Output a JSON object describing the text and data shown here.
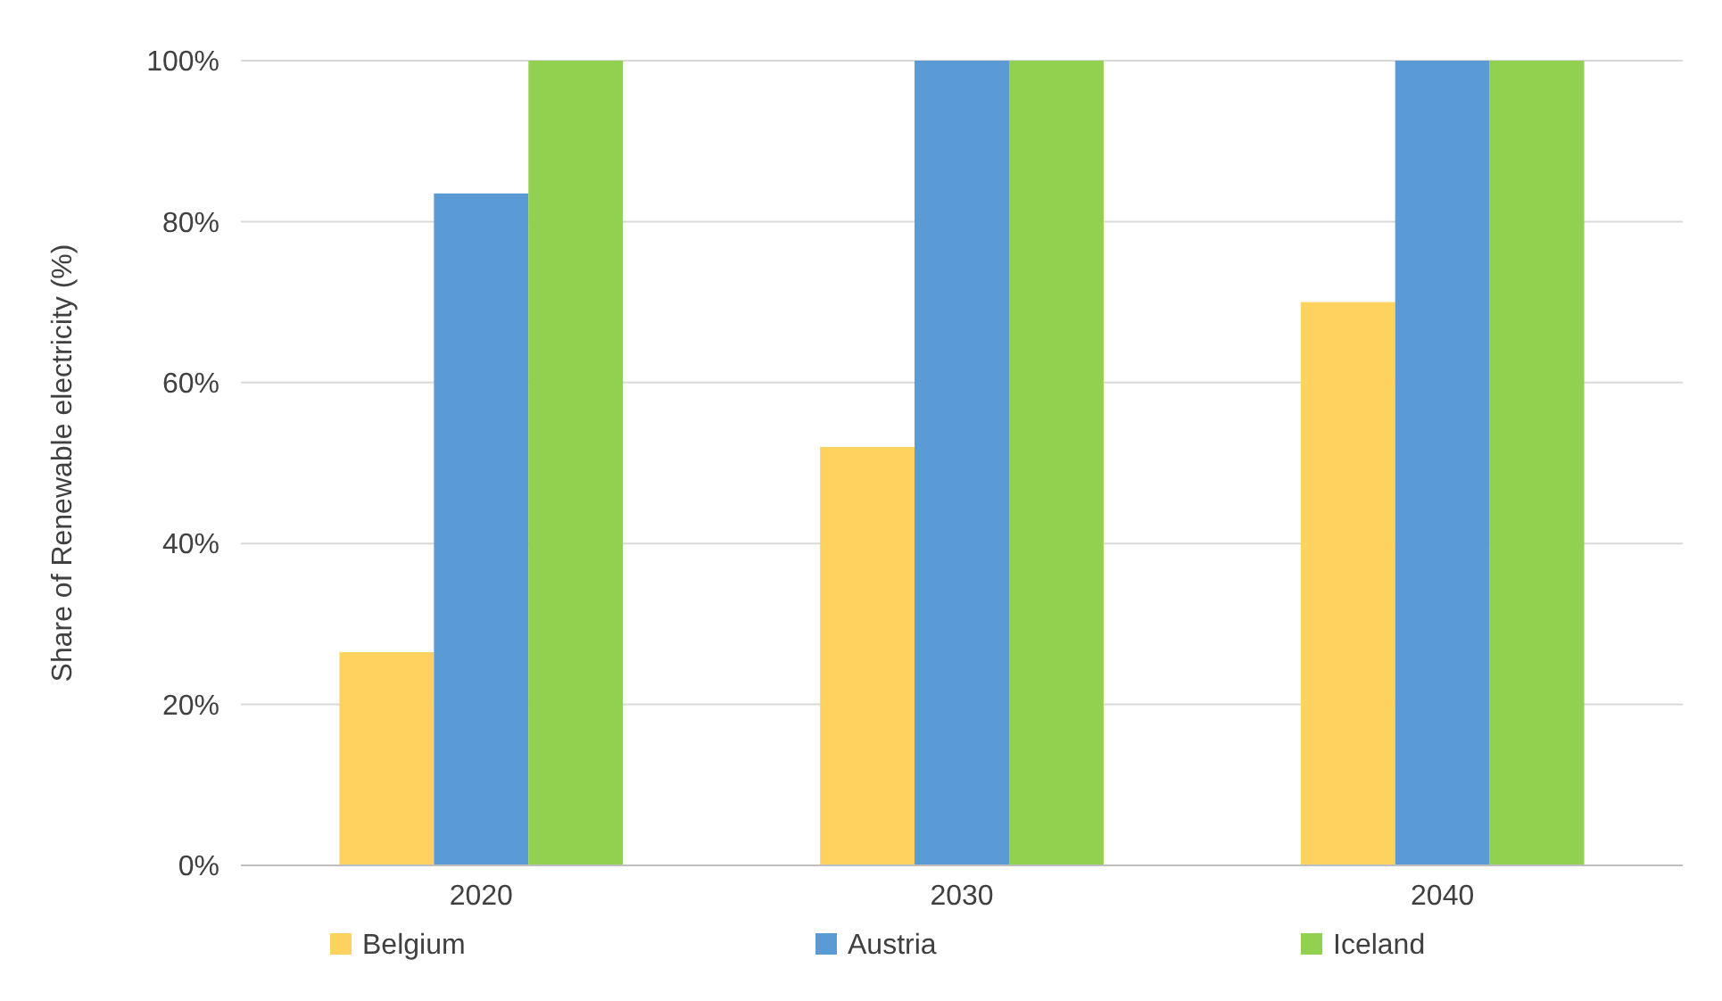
{
  "chart_data": {
    "type": "bar",
    "ylabel": "Share of Renewable electricity (%)",
    "categories": [
      "2020",
      "2030",
      "2040"
    ],
    "series": [
      {
        "name": "Belgium",
        "color": "#fdd25f",
        "values": [
          26.5,
          52,
          70
        ]
      },
      {
        "name": "Austria",
        "color": "#5b9bd5",
        "values": [
          83.5,
          100,
          100
        ]
      },
      {
        "name": "Iceland",
        "color": "#92d050",
        "values": [
          100,
          100,
          100
        ]
      }
    ],
    "ylim": [
      0,
      100
    ],
    "yticks": [
      {
        "value": 0,
        "label": "0%"
      },
      {
        "value": 20,
        "label": "20%"
      },
      {
        "value": 40,
        "label": "40%"
      },
      {
        "value": 60,
        "label": "60%"
      },
      {
        "value": 80,
        "label": "80%"
      },
      {
        "value": 100,
        "label": "100%"
      }
    ],
    "grid": "y",
    "legend": "bottom"
  }
}
